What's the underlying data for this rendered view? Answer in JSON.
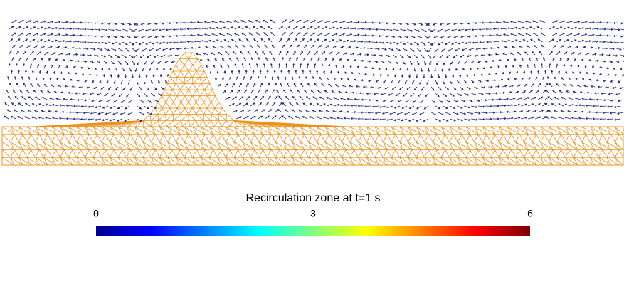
{
  "colorbar": {
    "title": "Recirculation zone at t=1 s",
    "range": [
      0,
      6
    ],
    "ticks": [
      0,
      3,
      6
    ],
    "colormap": "jet"
  }
}
